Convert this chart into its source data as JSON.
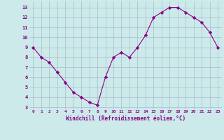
{
  "x": [
    0,
    1,
    2,
    3,
    4,
    5,
    6,
    7,
    8,
    9,
    10,
    11,
    12,
    13,
    14,
    15,
    16,
    17,
    18,
    19,
    20,
    21,
    22,
    23
  ],
  "y": [
    9,
    8,
    7.5,
    6.5,
    5.5,
    4.5,
    4,
    3.5,
    3.2,
    6,
    8,
    8.5,
    8,
    9,
    10.2,
    12,
    12.5,
    13,
    13,
    12.5,
    12,
    11.5,
    10.5,
    9
  ],
  "line_color": "#880088",
  "marker": "D",
  "marker_size": 2.2,
  "bg_color": "#cceaea",
  "grid_color": "#aabbcc",
  "xlabel": "Windchill (Refroidissement éolien,°C)",
  "xlabel_color": "#880088",
  "tick_color": "#880088",
  "ylabel_ticks": [
    3,
    4,
    5,
    6,
    7,
    8,
    9,
    10,
    11,
    12,
    13
  ],
  "ylim": [
    2.8,
    13.6
  ],
  "xlim": [
    -0.5,
    23.5
  ],
  "xtick_labels": [
    "0",
    "1",
    "2",
    "3",
    "4",
    "5",
    "6",
    "7",
    "8",
    "9",
    "10",
    "11",
    "12",
    "13",
    "14",
    "15",
    "16",
    "17",
    "18",
    "19",
    "20",
    "21",
    "22",
    "23"
  ]
}
